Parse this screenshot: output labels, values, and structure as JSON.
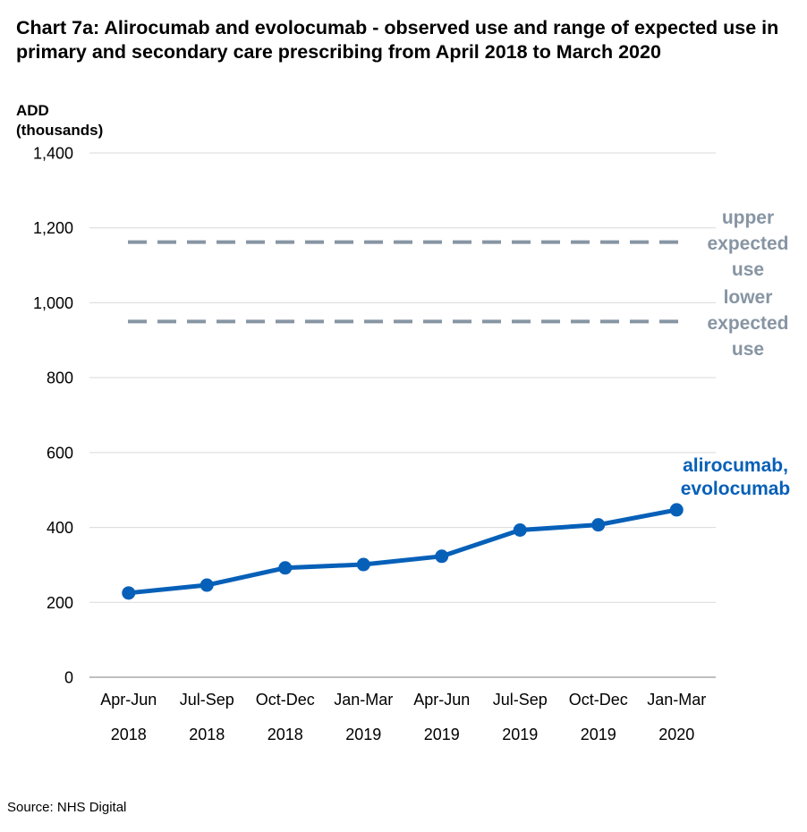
{
  "title": "Chart 7a: Alirocumab and evolocumab - observed use and range of expected use in primary and secondary care prescribing from April 2018 to March 2020",
  "source": "Source: NHS Digital",
  "colors": {
    "series": "#0760B8",
    "reference": "#8795A3",
    "grid": "#D9D9D9",
    "axis": "#7F7F7F"
  },
  "chart_data": {
    "type": "line",
    "ylabel_lines": [
      "ADD",
      "(thousands)"
    ],
    "ylim": [
      0,
      1400
    ],
    "yticks": [
      0,
      200,
      400,
      600,
      800,
      1000,
      1200,
      1400
    ],
    "ytick_labels": [
      "0",
      "200",
      "400",
      "600",
      "800",
      "1,000",
      "1,200",
      "1,400"
    ],
    "grid": true,
    "categories": [
      [
        "Apr-Jun",
        "2018"
      ],
      [
        "Jul-Sep",
        "2018"
      ],
      [
        "Oct-Dec",
        "2018"
      ],
      [
        "Jan-Mar",
        "2019"
      ],
      [
        "Apr-Jun",
        "2019"
      ],
      [
        "Jul-Sep",
        "2019"
      ],
      [
        "Oct-Dec",
        "2019"
      ],
      [
        "Jan-Mar",
        "2020"
      ]
    ],
    "series": [
      {
        "label_lines": [
          "alirocumab,",
          "evolocumab"
        ],
        "values": [
          225,
          246,
          292,
          301,
          323,
          393,
          407,
          447
        ]
      }
    ],
    "reference_lines": [
      {
        "label_lines": [
          "upper",
          "expected",
          "use"
        ],
        "value": 1162
      },
      {
        "label_lines": [
          "lower",
          "expected",
          "use"
        ],
        "value": 950
      }
    ]
  }
}
